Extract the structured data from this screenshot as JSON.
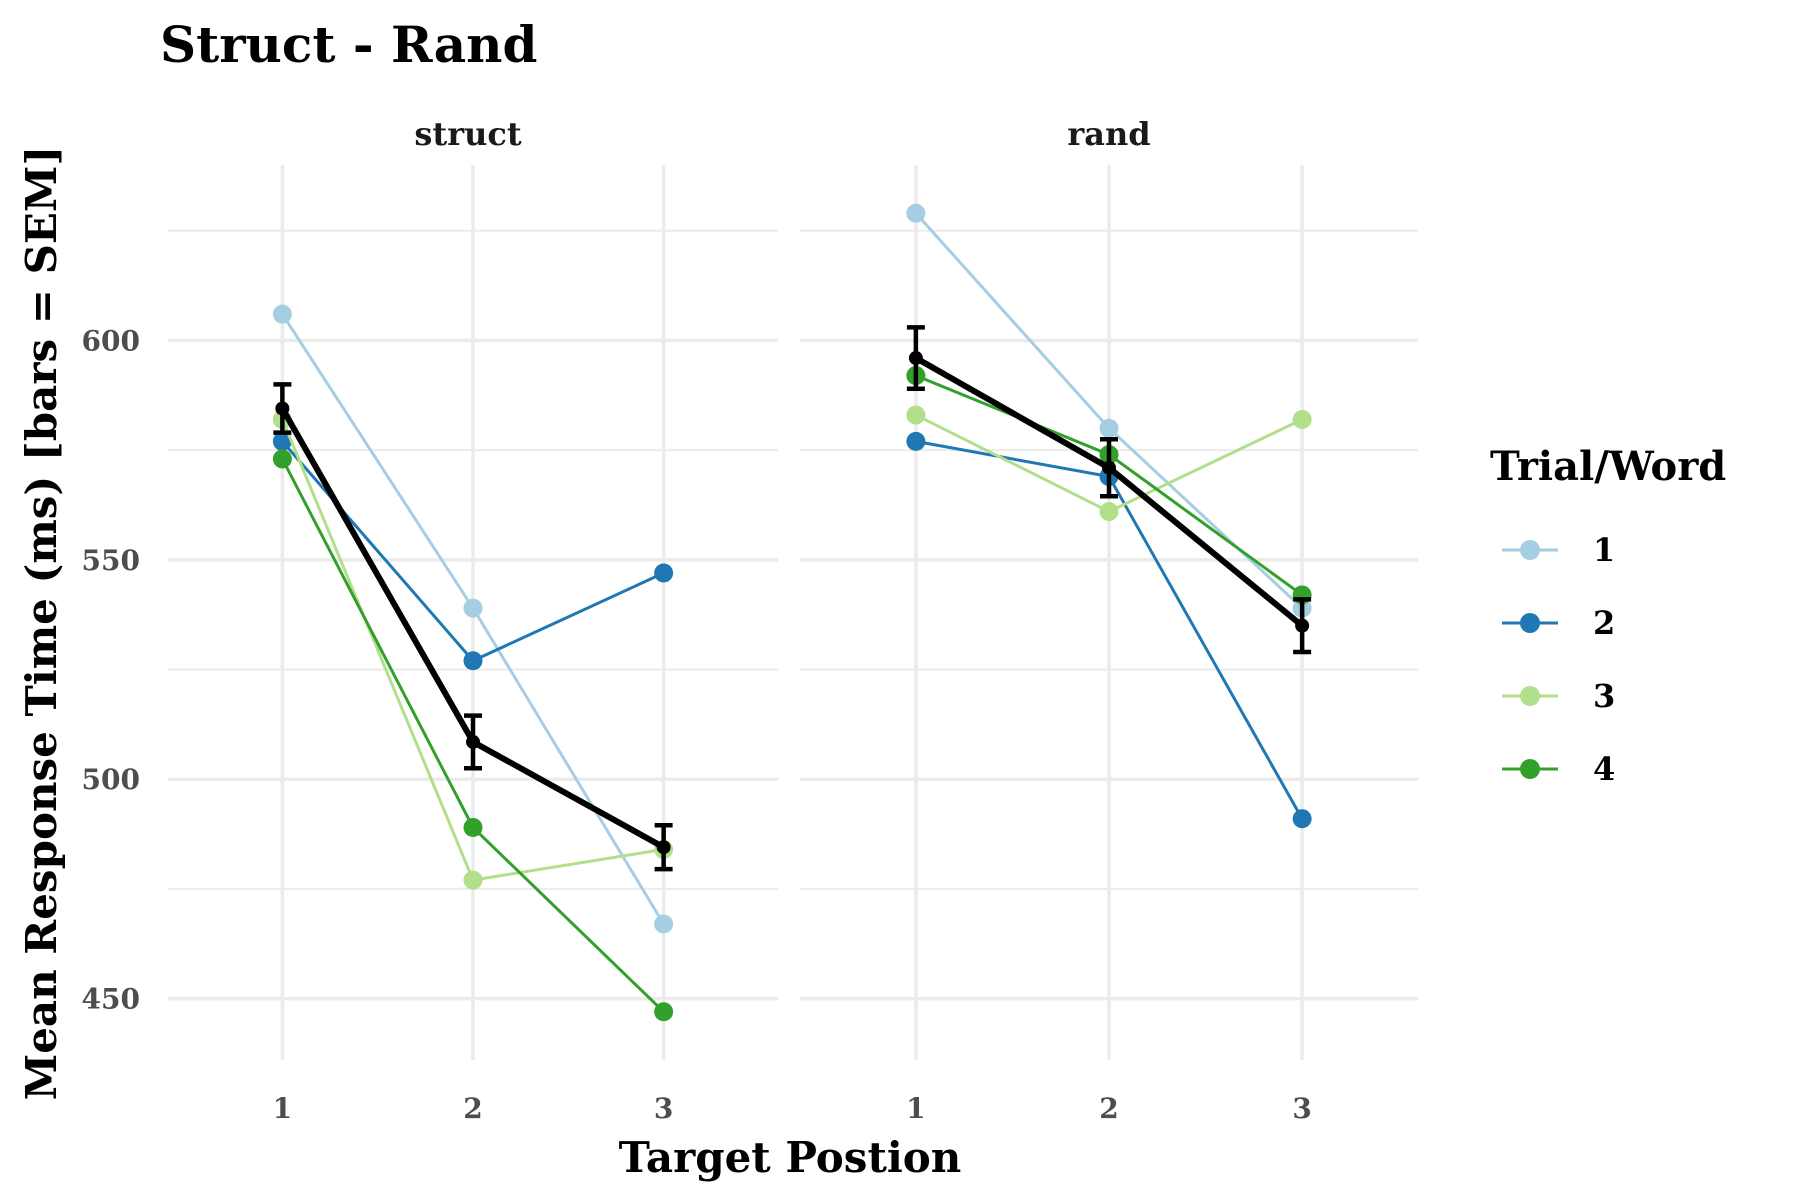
{
  "chart_data": {
    "type": "line",
    "title": "Struct - Rand",
    "xlabel": "Target Postion",
    "ylabel": "Mean Response Time (ms) [bars = SEM]",
    "x": [
      1,
      2,
      3
    ],
    "x_tick_labels": [
      "1",
      "2",
      "3"
    ],
    "y_ticks": [
      450,
      500,
      550,
      600
    ],
    "ylim": [
      436,
      640
    ],
    "xlim": [
      0.4,
      3.6
    ],
    "grid": true,
    "legend": {
      "title": "Trial/Word",
      "placement": "right"
    },
    "panels": [
      {
        "label": "struct",
        "series": [
          {
            "name": "1",
            "color": "#a6cee3",
            "values": [
              606,
              539,
              467
            ]
          },
          {
            "name": "2",
            "color": "#1f78b4",
            "values": [
              577,
              527,
              547
            ]
          },
          {
            "name": "3",
            "color": "#b2df8a",
            "values": [
              582,
              477,
              484
            ]
          },
          {
            "name": "4",
            "color": "#33a02c",
            "values": [
              573,
              489,
              447
            ]
          }
        ],
        "mean": {
          "color": "#000000",
          "values": [
            584.5,
            508.5,
            484.5
          ],
          "sem": [
            5.5,
            6,
            5
          ]
        }
      },
      {
        "label": "rand",
        "series": [
          {
            "name": "1",
            "color": "#a6cee3",
            "values": [
              629,
              580,
              539
            ]
          },
          {
            "name": "2",
            "color": "#1f78b4",
            "values": [
              577,
              569,
              491
            ]
          },
          {
            "name": "3",
            "color": "#b2df8a",
            "values": [
              583,
              561,
              582
            ]
          },
          {
            "name": "4",
            "color": "#33a02c",
            "values": [
              592,
              574,
              542
            ]
          }
        ],
        "mean": {
          "color": "#000000",
          "values": [
            596,
            571,
            535
          ],
          "sem": [
            7,
            6.5,
            6
          ]
        }
      }
    ]
  }
}
